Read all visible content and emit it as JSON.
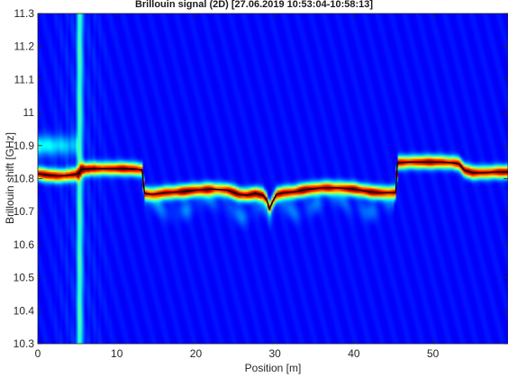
{
  "chart_data": {
    "type": "heatmap",
    "title": "Brillouin signal (2D) [27.06.2019 10:53:04-10:58:13]",
    "xlabel": "Position [m]",
    "ylabel": "Brillouin shift [GHz]",
    "xlim": [
      0,
      59.5
    ],
    "ylim": [
      10.3,
      11.3
    ],
    "xticks": [
      0,
      10,
      20,
      30,
      40,
      50
    ],
    "yticks": [
      10.3,
      10.4,
      10.5,
      10.6,
      10.7,
      10.8,
      10.9,
      11,
      11.1,
      11.2,
      11.3
    ],
    "grid": false,
    "colormap": "jet",
    "vertical_stripe_position": 5.3,
    "secondary_band": {
      "x_range": [
        0,
        5
      ],
      "y": 10.9
    },
    "series": [
      {
        "x": [
          0,
          0.5,
          1.5,
          2.5,
          3.5,
          4.5,
          5.2,
          5.5,
          7,
          9,
          11,
          12.5,
          13.2,
          13.5,
          14.5,
          16,
          18,
          20,
          22,
          24,
          25.5,
          26.5,
          27.5,
          28.5,
          29,
          29.3,
          29.7,
          30.2,
          31,
          32.5,
          34,
          36,
          38,
          40,
          42,
          43.5,
          44.5,
          45.3,
          45.5,
          47,
          49,
          51,
          52.5,
          53.3,
          54,
          55,
          56.5,
          58,
          59.5
        ],
        "y": [
          10.815,
          10.813,
          10.81,
          10.808,
          10.809,
          10.812,
          10.815,
          10.828,
          10.83,
          10.83,
          10.83,
          10.828,
          10.826,
          10.755,
          10.752,
          10.757,
          10.76,
          10.765,
          10.768,
          10.765,
          10.752,
          10.75,
          10.755,
          10.75,
          10.735,
          10.707,
          10.73,
          10.752,
          10.757,
          10.76,
          10.767,
          10.772,
          10.772,
          10.768,
          10.76,
          10.757,
          10.758,
          10.758,
          10.848,
          10.85,
          10.85,
          10.85,
          10.848,
          10.845,
          10.825,
          10.818,
          10.818,
          10.82,
          10.82
        ]
      }
    ]
  }
}
